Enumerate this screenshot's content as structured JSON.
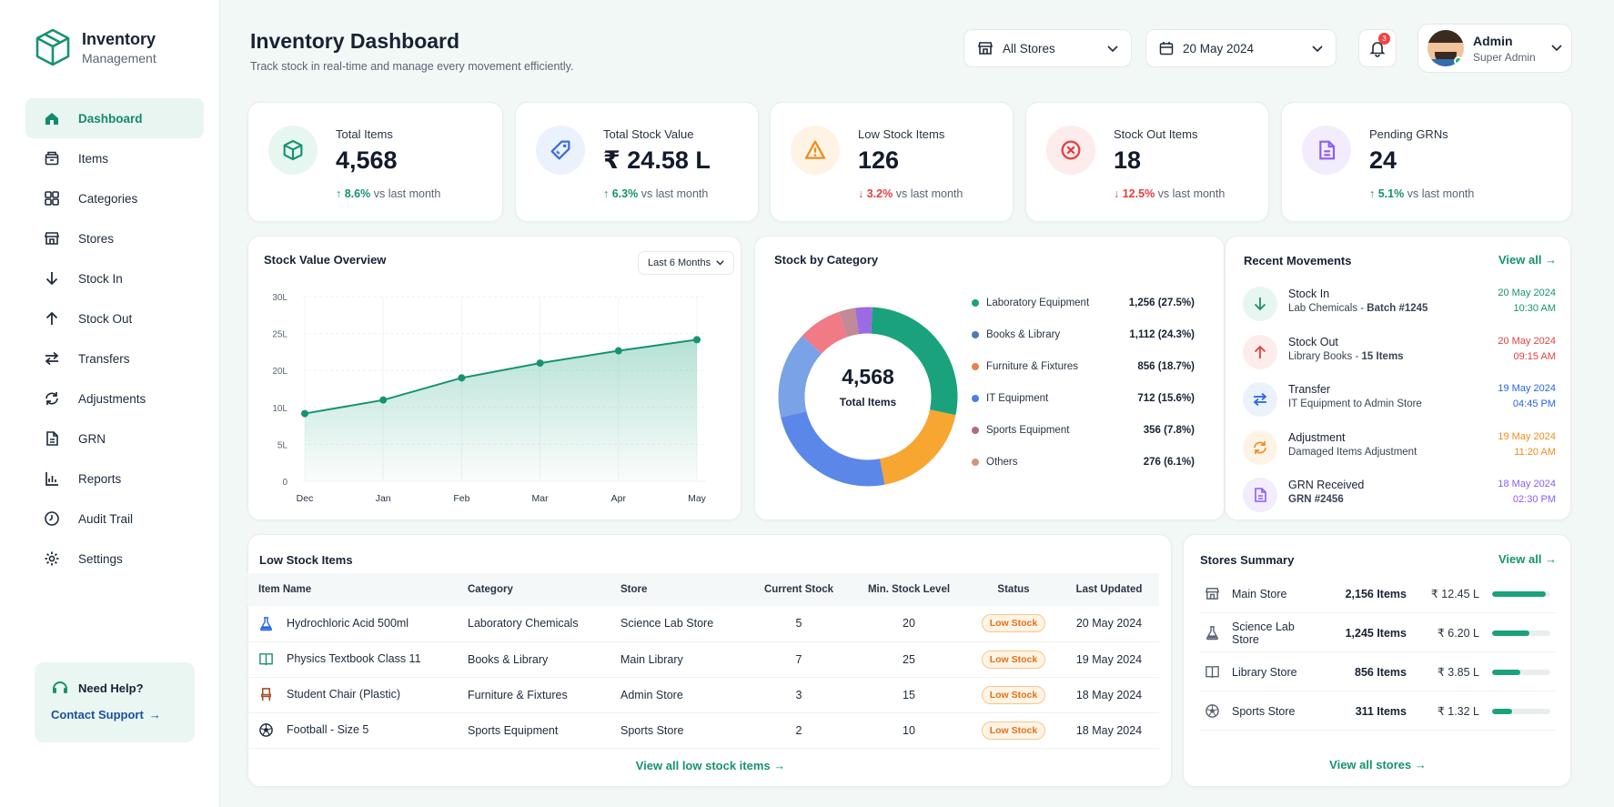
{
  "brand": {
    "title": "Inventory",
    "subtitle": "Management"
  },
  "nav": [
    {
      "label": "Dashboard",
      "icon": "home-icon",
      "active": true
    },
    {
      "label": "Items",
      "icon": "box-icon"
    },
    {
      "label": "Categories",
      "icon": "grid-icon"
    },
    {
      "label": "Stores",
      "icon": "store-icon"
    },
    {
      "label": "Stock In",
      "icon": "arrow-down-icon"
    },
    {
      "label": "Stock Out",
      "icon": "arrow-up-icon"
    },
    {
      "label": "Transfers",
      "icon": "swap-icon"
    },
    {
      "label": "Adjustments",
      "icon": "adjust-icon"
    },
    {
      "label": "GRN",
      "icon": "document-icon"
    },
    {
      "label": "Reports",
      "icon": "report-icon"
    },
    {
      "label": "Audit Trail",
      "icon": "clock-icon"
    },
    {
      "label": "Settings",
      "icon": "gear-icon"
    }
  ],
  "help": {
    "title": "Need Help?",
    "link": "Contact Support"
  },
  "header": {
    "title": "Inventory Dashboard",
    "subtitle": "Track stock in real-time and manage every movement efficiently.",
    "store_filter": "All Stores",
    "date_filter": "20 May 2024",
    "notifications": "3",
    "user_name": "Admin",
    "user_role": "Super Admin"
  },
  "kpis": [
    {
      "label": "Total Items",
      "value": "4,568",
      "delta": "8.6%",
      "direction": "up",
      "suffix": "vs last month",
      "icon": "cube-icon",
      "color": "#15936f",
      "bg": "#e8f6f1"
    },
    {
      "label": "Total Stock Value",
      "value": "₹ 24.58 L",
      "delta": "6.3%",
      "direction": "up",
      "suffix": "vs last month",
      "icon": "tag-icon",
      "color": "#3b6fd8",
      "bg": "#ebf1fd"
    },
    {
      "label": "Low Stock Items",
      "value": "126",
      "delta": "3.2%",
      "direction": "down",
      "suffix": "vs last month",
      "icon": "warning-icon",
      "color": "#f08c1a",
      "bg": "#fff3e6"
    },
    {
      "label": "Stock Out Items",
      "value": "18",
      "delta": "12.5%",
      "direction": "down",
      "suffix": "vs last month",
      "icon": "x-circle-icon",
      "color": "#e53e3e",
      "bg": "#fdecec"
    },
    {
      "label": "Pending GRNs",
      "value": "24",
      "delta": "5.1%",
      "direction": "up",
      "suffix": "vs last month",
      "icon": "document-icon",
      "color": "#8b5cf6",
      "bg": "#f2ecfd"
    }
  ],
  "stock_value": {
    "title": "Stock Value Overview",
    "range": "Last 6 Months"
  },
  "chart_data": [
    {
      "type": "area",
      "categories": [
        "Dec",
        "Jan",
        "Feb",
        "Mar",
        "Apr",
        "May"
      ],
      "values": [
        11,
        13.2,
        16.8,
        19.2,
        21.2,
        23
      ],
      "yticks": [
        "0",
        "5L",
        "10L",
        "20L",
        "25L",
        "30L"
      ],
      "ylim": [
        0,
        30
      ],
      "grid": true
    },
    {
      "type": "pie",
      "center_value": "4,568",
      "center_label": "Total Items",
      "slices": [
        {
          "name": "Laboratory Equipment",
          "value": 1256,
          "display": "1,256 (27.5%)",
          "color": "#1aa27d"
        },
        {
          "name": "Books & Library",
          "value": 1112,
          "display": "1,112 (24.3%)",
          "color": "#4d7ab9"
        },
        {
          "name": "Furniture & Fixtures",
          "value": 856,
          "display": "856 (18.7%)",
          "color": "#e8804a"
        },
        {
          "name": "IT Equipment",
          "value": 712,
          "display": "712 (15.6%)",
          "color": "#4b7fe0"
        },
        {
          "name": "Sports Equipment",
          "value": 356,
          "display": "356 (7.8%)",
          "color": "#b56b7a"
        },
        {
          "name": "Others",
          "value": 276,
          "display": "276 (6.1%)",
          "color": "#d6927a"
        }
      ]
    }
  ],
  "donut_ring": [
    {
      "color": "#1aa27d",
      "value": 27.5
    },
    {
      "color": "#f6a631",
      "value": 18.7
    },
    {
      "color": "#5b88e8",
      "value": 24.3
    },
    {
      "color": "#7aa2e6",
      "value": 15.6
    },
    {
      "color": "#f07a86",
      "value": 7.8
    },
    {
      "color": "#c28a96",
      "value": 3.0
    },
    {
      "color": "#9b6be3",
      "value": 3.1
    }
  ],
  "category": {
    "title": "Stock by Category"
  },
  "movements": {
    "title": "Recent Movements",
    "view_all": "View all",
    "items": [
      {
        "title": "Stock In",
        "sub": "Lab Chemicals - ",
        "sub_bold": "Batch #1245",
        "date": "20 May 2024",
        "time": "10:30 AM",
        "color": "#15936f",
        "bg": "#e8f6f1",
        "icon": "arrow-down-icon"
      },
      {
        "title": "Stock Out",
        "sub": "Library Books - ",
        "sub_bold": "15 Items",
        "date": "20 May 2024",
        "time": "09:15 AM",
        "color": "#e53e3e",
        "bg": "#fdecec",
        "icon": "arrow-up-icon"
      },
      {
        "title": "Transfer",
        "sub": "IT Equipment to Admin Store",
        "sub_bold": "",
        "date": "19 May 2024",
        "time": "04:45 PM",
        "color": "#2563eb",
        "bg": "#ebf1fd",
        "icon": "swap-icon"
      },
      {
        "title": "Adjustment",
        "sub": "Damaged Items Adjustment",
        "sub_bold": "",
        "date": "19 May 2024",
        "time": "11:20 AM",
        "color": "#f08c1a",
        "bg": "#fff3e6",
        "icon": "adjust-icon"
      },
      {
        "title": "GRN Received",
        "sub": "",
        "sub_bold": "GRN #2456",
        "date": "18 May 2024",
        "time": "02:30 PM",
        "color": "#8b5cf6",
        "bg": "#f2ecfd",
        "icon": "document-icon"
      }
    ]
  },
  "low_stock": {
    "title": "Low Stock Items",
    "columns": [
      "Item Name",
      "Category",
      "Store",
      "Current Stock",
      "Min. Stock Level",
      "Status",
      "Last Updated"
    ],
    "rows": [
      {
        "name": "Hydrochloric Acid 500ml",
        "category": "Laboratory Chemicals",
        "store": "Science Lab Store",
        "current": "5",
        "min": "20",
        "status": "Low Stock",
        "updated": "20 May 2024",
        "icon": "flask-icon"
      },
      {
        "name": "Physics Textbook Class 11",
        "category": "Books & Library",
        "store": "Main Library",
        "current": "7",
        "min": "25",
        "status": "Low Stock",
        "updated": "19 May 2024",
        "icon": "book-icon"
      },
      {
        "name": "Student Chair (Plastic)",
        "category": "Furniture & Fixtures",
        "store": "Admin Store",
        "current": "3",
        "min": "15",
        "status": "Low Stock",
        "updated": "18 May 2024",
        "icon": "chair-icon"
      },
      {
        "name": "Football - Size 5",
        "category": "Sports Equipment",
        "store": "Sports Store",
        "current": "2",
        "min": "10",
        "status": "Low Stock",
        "updated": "18 May 2024",
        "icon": "football-icon"
      }
    ],
    "view_all": "View all low stock items"
  },
  "stores": {
    "title": "Stores Summary",
    "view_all": "View all",
    "footer": "View all stores",
    "rows": [
      {
        "name": "Main Store",
        "items": "2,156 Items",
        "value": "₹ 12.45 L",
        "fill": 0.92,
        "icon": "store-icon"
      },
      {
        "name": "Science Lab Store",
        "items": "1,245 Items",
        "value": "₹ 6.20 L",
        "fill": 0.64,
        "icon": "flask-icon"
      },
      {
        "name": "Library Store",
        "items": "856 Items",
        "value": "₹ 3.85 L",
        "fill": 0.48,
        "icon": "book-icon"
      },
      {
        "name": "Sports Store",
        "items": "311 Items",
        "value": "₹ 1.32 L",
        "fill": 0.34,
        "icon": "football-icon"
      }
    ]
  }
}
